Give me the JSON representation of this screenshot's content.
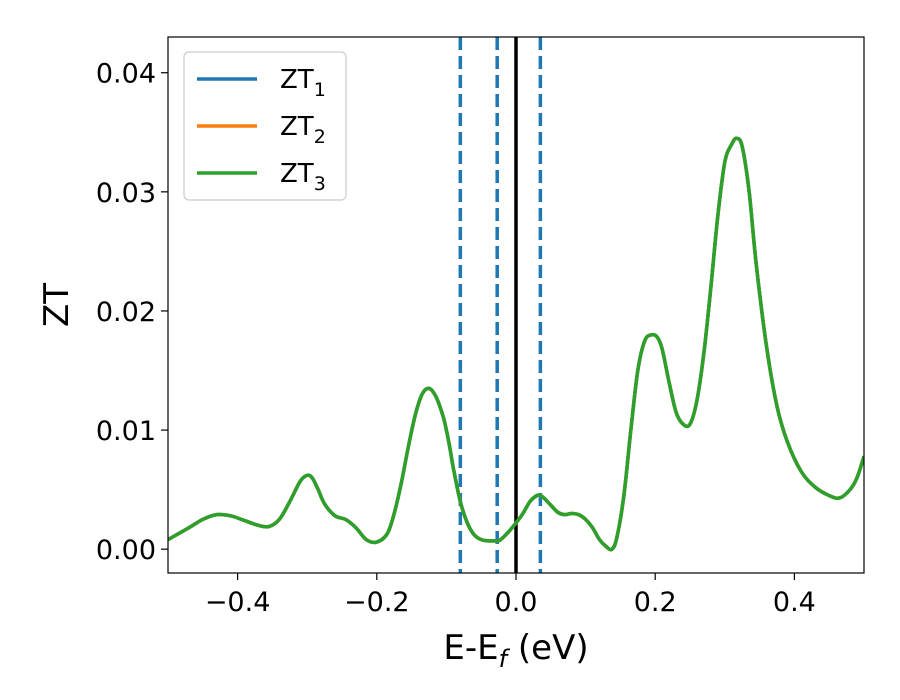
{
  "chart_data": {
    "type": "line",
    "title": "",
    "xlabel": {
      "main": "E-E",
      "sub": "f",
      "suffix": " (eV)"
    },
    "ylabel": "ZT",
    "xlim": [
      -0.5,
      0.5
    ],
    "ylim": [
      -0.002,
      0.043
    ],
    "x_ticks": [
      -0.4,
      -0.2,
      0.0,
      0.2,
      0.4
    ],
    "x_tick_labels": [
      "−0.4",
      "−0.2",
      "0.0",
      "0.2",
      "0.4"
    ],
    "y_ticks": [
      0.0,
      0.01,
      0.02,
      0.03,
      0.04
    ],
    "y_tick_labels": [
      "0.00",
      "0.01",
      "0.02",
      "0.03",
      "0.04"
    ],
    "grid": false,
    "legend_position": "top-left",
    "series": [
      {
        "name": {
          "base": "ZT",
          "sub": "1"
        },
        "color": "#1f77b4",
        "x": [
          -0.5,
          -0.47,
          -0.45,
          -0.43,
          -0.41,
          -0.39,
          -0.37,
          -0.355,
          -0.34,
          -0.325,
          -0.31,
          -0.3,
          -0.293,
          -0.285,
          -0.275,
          -0.26,
          -0.245,
          -0.23,
          -0.215,
          -0.2,
          -0.185,
          -0.175,
          -0.165,
          -0.155,
          -0.145,
          -0.135,
          -0.125,
          -0.115,
          -0.105,
          -0.1,
          -0.095,
          -0.09,
          -0.08,
          -0.07,
          -0.06,
          -0.05,
          -0.04,
          -0.03,
          -0.025,
          -0.02,
          -0.01,
          0.0,
          0.01,
          0.02,
          0.03,
          0.035,
          0.04,
          0.05,
          0.06,
          0.07,
          0.08,
          0.09,
          0.1,
          0.11,
          0.12,
          0.13,
          0.138,
          0.145,
          0.155,
          0.165,
          0.175,
          0.185,
          0.195,
          0.203,
          0.21,
          0.22,
          0.23,
          0.24,
          0.25,
          0.26,
          0.27,
          0.28,
          0.29,
          0.3,
          0.31,
          0.317,
          0.325,
          0.335,
          0.345,
          0.36,
          0.375,
          0.39,
          0.41,
          0.43,
          0.45,
          0.465,
          0.48,
          0.49,
          0.5
        ],
        "y": [
          0.0008,
          0.0018,
          0.0025,
          0.0029,
          0.0028,
          0.0024,
          0.002,
          0.0019,
          0.0025,
          0.004,
          0.0057,
          0.0062,
          0.006,
          0.0051,
          0.0038,
          0.0028,
          0.0025,
          0.0018,
          0.0008,
          0.0006,
          0.0013,
          0.003,
          0.0055,
          0.0085,
          0.0112,
          0.013,
          0.0135,
          0.0128,
          0.0112,
          0.01,
          0.0085,
          0.0068,
          0.004,
          0.0022,
          0.0012,
          0.0008,
          0.0007,
          0.0007,
          0.0007,
          0.0009,
          0.0015,
          0.0022,
          0.003,
          0.004,
          0.0045,
          0.0045,
          0.0043,
          0.0037,
          0.0031,
          0.0029,
          0.003,
          0.0029,
          0.0025,
          0.0018,
          0.0008,
          0.0002,
          0.0,
          0.001,
          0.0045,
          0.01,
          0.015,
          0.0175,
          0.018,
          0.0178,
          0.0168,
          0.014,
          0.0115,
          0.0105,
          0.0105,
          0.0125,
          0.0165,
          0.022,
          0.028,
          0.0325,
          0.034,
          0.0345,
          0.0338,
          0.03,
          0.024,
          0.017,
          0.012,
          0.009,
          0.0065,
          0.0052,
          0.0045,
          0.0043,
          0.005,
          0.006,
          0.0078
        ]
      },
      {
        "name": {
          "base": "ZT",
          "sub": "2"
        },
        "color": "#ff7f0e",
        "same_as": 0
      },
      {
        "name": {
          "base": "ZT",
          "sub": "3"
        },
        "color": "#2ca02c",
        "same_as": 0
      }
    ],
    "vertical_lines": [
      {
        "x": -0.08,
        "style": "dashed",
        "color": "#1f77b4"
      },
      {
        "x": -0.027,
        "style": "dashed",
        "color": "#1f77b4"
      },
      {
        "x": 0.0,
        "style": "solid",
        "color": "#000000"
      },
      {
        "x": 0.035,
        "style": "dashed",
        "color": "#1f77b4"
      }
    ]
  }
}
